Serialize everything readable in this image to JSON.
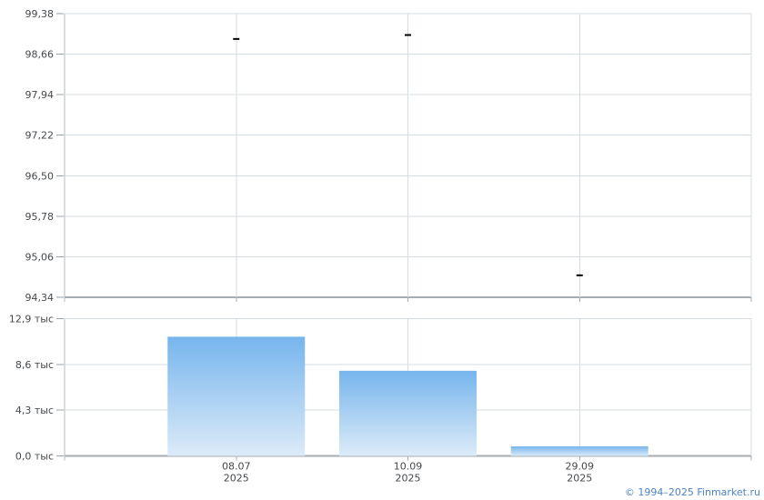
{
  "chart_data": [
    {
      "type": "scatter",
      "name": "price-panel",
      "marker": "dash",
      "x": [
        "08.07",
        "10.09",
        "29.09"
      ],
      "y": [
        98.93,
        99.0,
        94.73
      ],
      "ylim": [
        94.34,
        99.38
      ],
      "ytick_labels": [
        "99,38",
        "98,66",
        "97,94",
        "97,22",
        "96,50",
        "95,78",
        "95,06",
        "94,34"
      ],
      "grid": true,
      "legend": "none"
    },
    {
      "type": "bar",
      "name": "volume-panel",
      "categories": [
        "08.07",
        "10.09",
        "29.09"
      ],
      "values": [
        11.2,
        8.0,
        0.9
      ],
      "unit": "тыс",
      "ylim": [
        0,
        12.9
      ],
      "ytick_labels": [
        "12,9 тыс",
        "8,6 тыс",
        "4,3 тыс",
        "0,0 тыс"
      ],
      "grid": true,
      "legend": "none"
    }
  ],
  "x_axis": {
    "labels": [
      {
        "date": "08.07",
        "year": "2025"
      },
      {
        "date": "10.09",
        "year": "2025"
      },
      {
        "date": "29.09",
        "year": "2025"
      }
    ]
  },
  "footer": {
    "copyright_label": "© 1994–2025 Finmarket.ru"
  },
  "style": {
    "background": "#ffffff",
    "grid_color": "#d4dde2",
    "axis_color": "#a6aeb4",
    "left_axis_color": "#b3bac0",
    "tick_color": "#9aa2a8",
    "label_color": "#45494d",
    "marker_color": "#000000",
    "bar_gradient_top": "#76b5ed",
    "bar_gradient_bottom": "#dcebf8",
    "link_color": "#4d82c6"
  }
}
